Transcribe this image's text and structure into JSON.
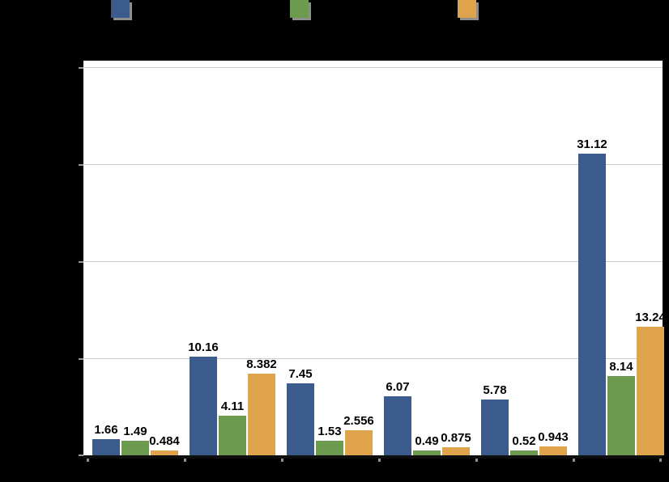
{
  "chart_data": {
    "type": "bar",
    "title": "",
    "categories": [
      "",
      "",
      "",
      "",
      "",
      ""
    ],
    "series": [
      {
        "name": "",
        "color": "#3B5B8C",
        "values": [
          1.66,
          10.16,
          7.45,
          6.07,
          5.78,
          31.12
        ],
        "labels": [
          "1.66",
          "10.16",
          "7.45",
          "6.07",
          "5.78",
          "31.12"
        ]
      },
      {
        "name": "",
        "color": "#6C9B50",
        "values": [
          1.49,
          4.11,
          1.53,
          0.49,
          0.52,
          8.14
        ],
        "labels": [
          "1.49",
          "4.11",
          "1.53",
          "0.49",
          "0.52",
          "8.14"
        ]
      },
      {
        "name": "",
        "color": "#DEA34B",
        "values": [
          0.484,
          8.382,
          2.556,
          0.875,
          0.943,
          13.24
        ],
        "labels": [
          "0.484",
          "8.382",
          "2.556",
          "0.875",
          "0.943",
          "13.24"
        ]
      }
    ],
    "ylim": [
      0,
      40.67
    ],
    "yticks": [
      0,
      10,
      20,
      30,
      40
    ],
    "grid": true,
    "legend_position": "top",
    "value_labels_shown": true
  },
  "style": {
    "page_background": "#000000",
    "plot_background": "#FFFFFF",
    "gridline_color": "#C9C9C9",
    "axis_color": "#0E0E0E",
    "tick_color": "#8E8E8E",
    "text_color": "#000000",
    "legend_shadow_color": "#8E8E8E"
  }
}
